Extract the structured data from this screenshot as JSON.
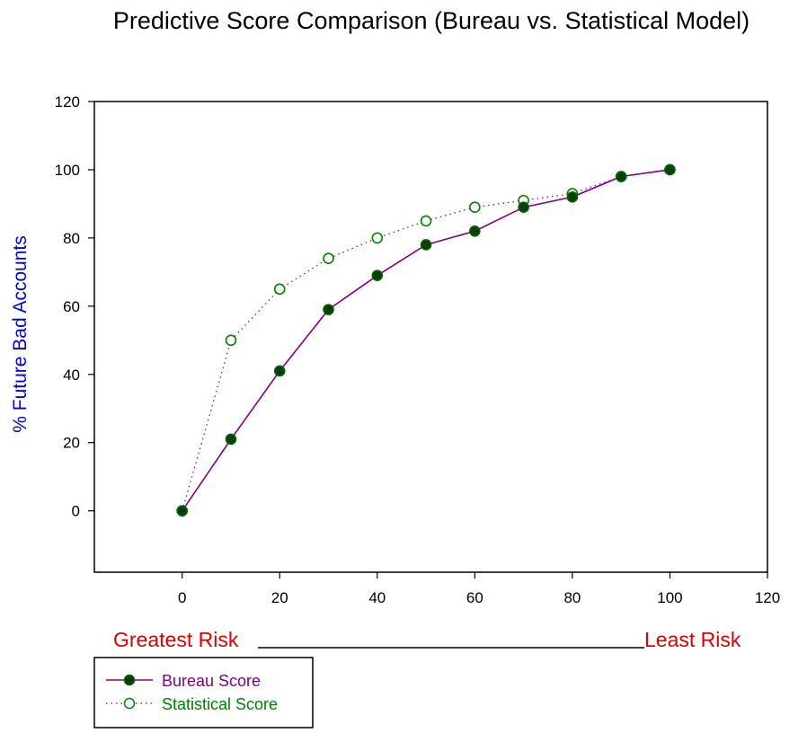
{
  "chart_data": {
    "type": "line",
    "title": "Predictive Score Comparison (Bureau vs. Statistical Model)",
    "xlabel": "",
    "ylabel": "% Future Bad Accounts",
    "xlim": [
      -18,
      120
    ],
    "ylim": [
      -18,
      120
    ],
    "x_ticks": [
      0,
      20,
      40,
      60,
      80,
      100,
      120
    ],
    "y_ticks": [
      0,
      20,
      40,
      60,
      80,
      100,
      120
    ],
    "grid": false,
    "legend_position": "bottom-left",
    "axis_annotation": {
      "left": "Greatest Risk",
      "right": "Least Risk",
      "color": "#e00000"
    },
    "series": [
      {
        "name": "Bureau Score",
        "color": "#800080",
        "marker_fill": "#0b3d0b",
        "marker_edge": "#006400",
        "line_style": "solid",
        "points": [
          [
            0,
            0
          ],
          [
            10,
            21
          ],
          [
            20,
            41
          ],
          [
            30,
            59
          ],
          [
            40,
            69
          ],
          [
            50,
            78
          ],
          [
            60,
            82
          ],
          [
            70,
            89
          ],
          [
            80,
            92
          ],
          [
            90,
            98
          ],
          [
            100,
            100
          ]
        ]
      },
      {
        "name": "Statistical Score",
        "color": "#800080",
        "marker_fill": "#ffffff",
        "marker_edge": "#008000",
        "line_style": "dotted",
        "legend_text_color": "#008000",
        "points": [
          [
            0,
            0
          ],
          [
            10,
            50
          ],
          [
            20,
            65
          ],
          [
            30,
            74
          ],
          [
            40,
            80
          ],
          [
            50,
            85
          ],
          [
            60,
            89
          ],
          [
            70,
            91
          ],
          [
            80,
            93
          ],
          [
            90,
            98
          ],
          [
            100,
            100
          ]
        ]
      }
    ]
  }
}
